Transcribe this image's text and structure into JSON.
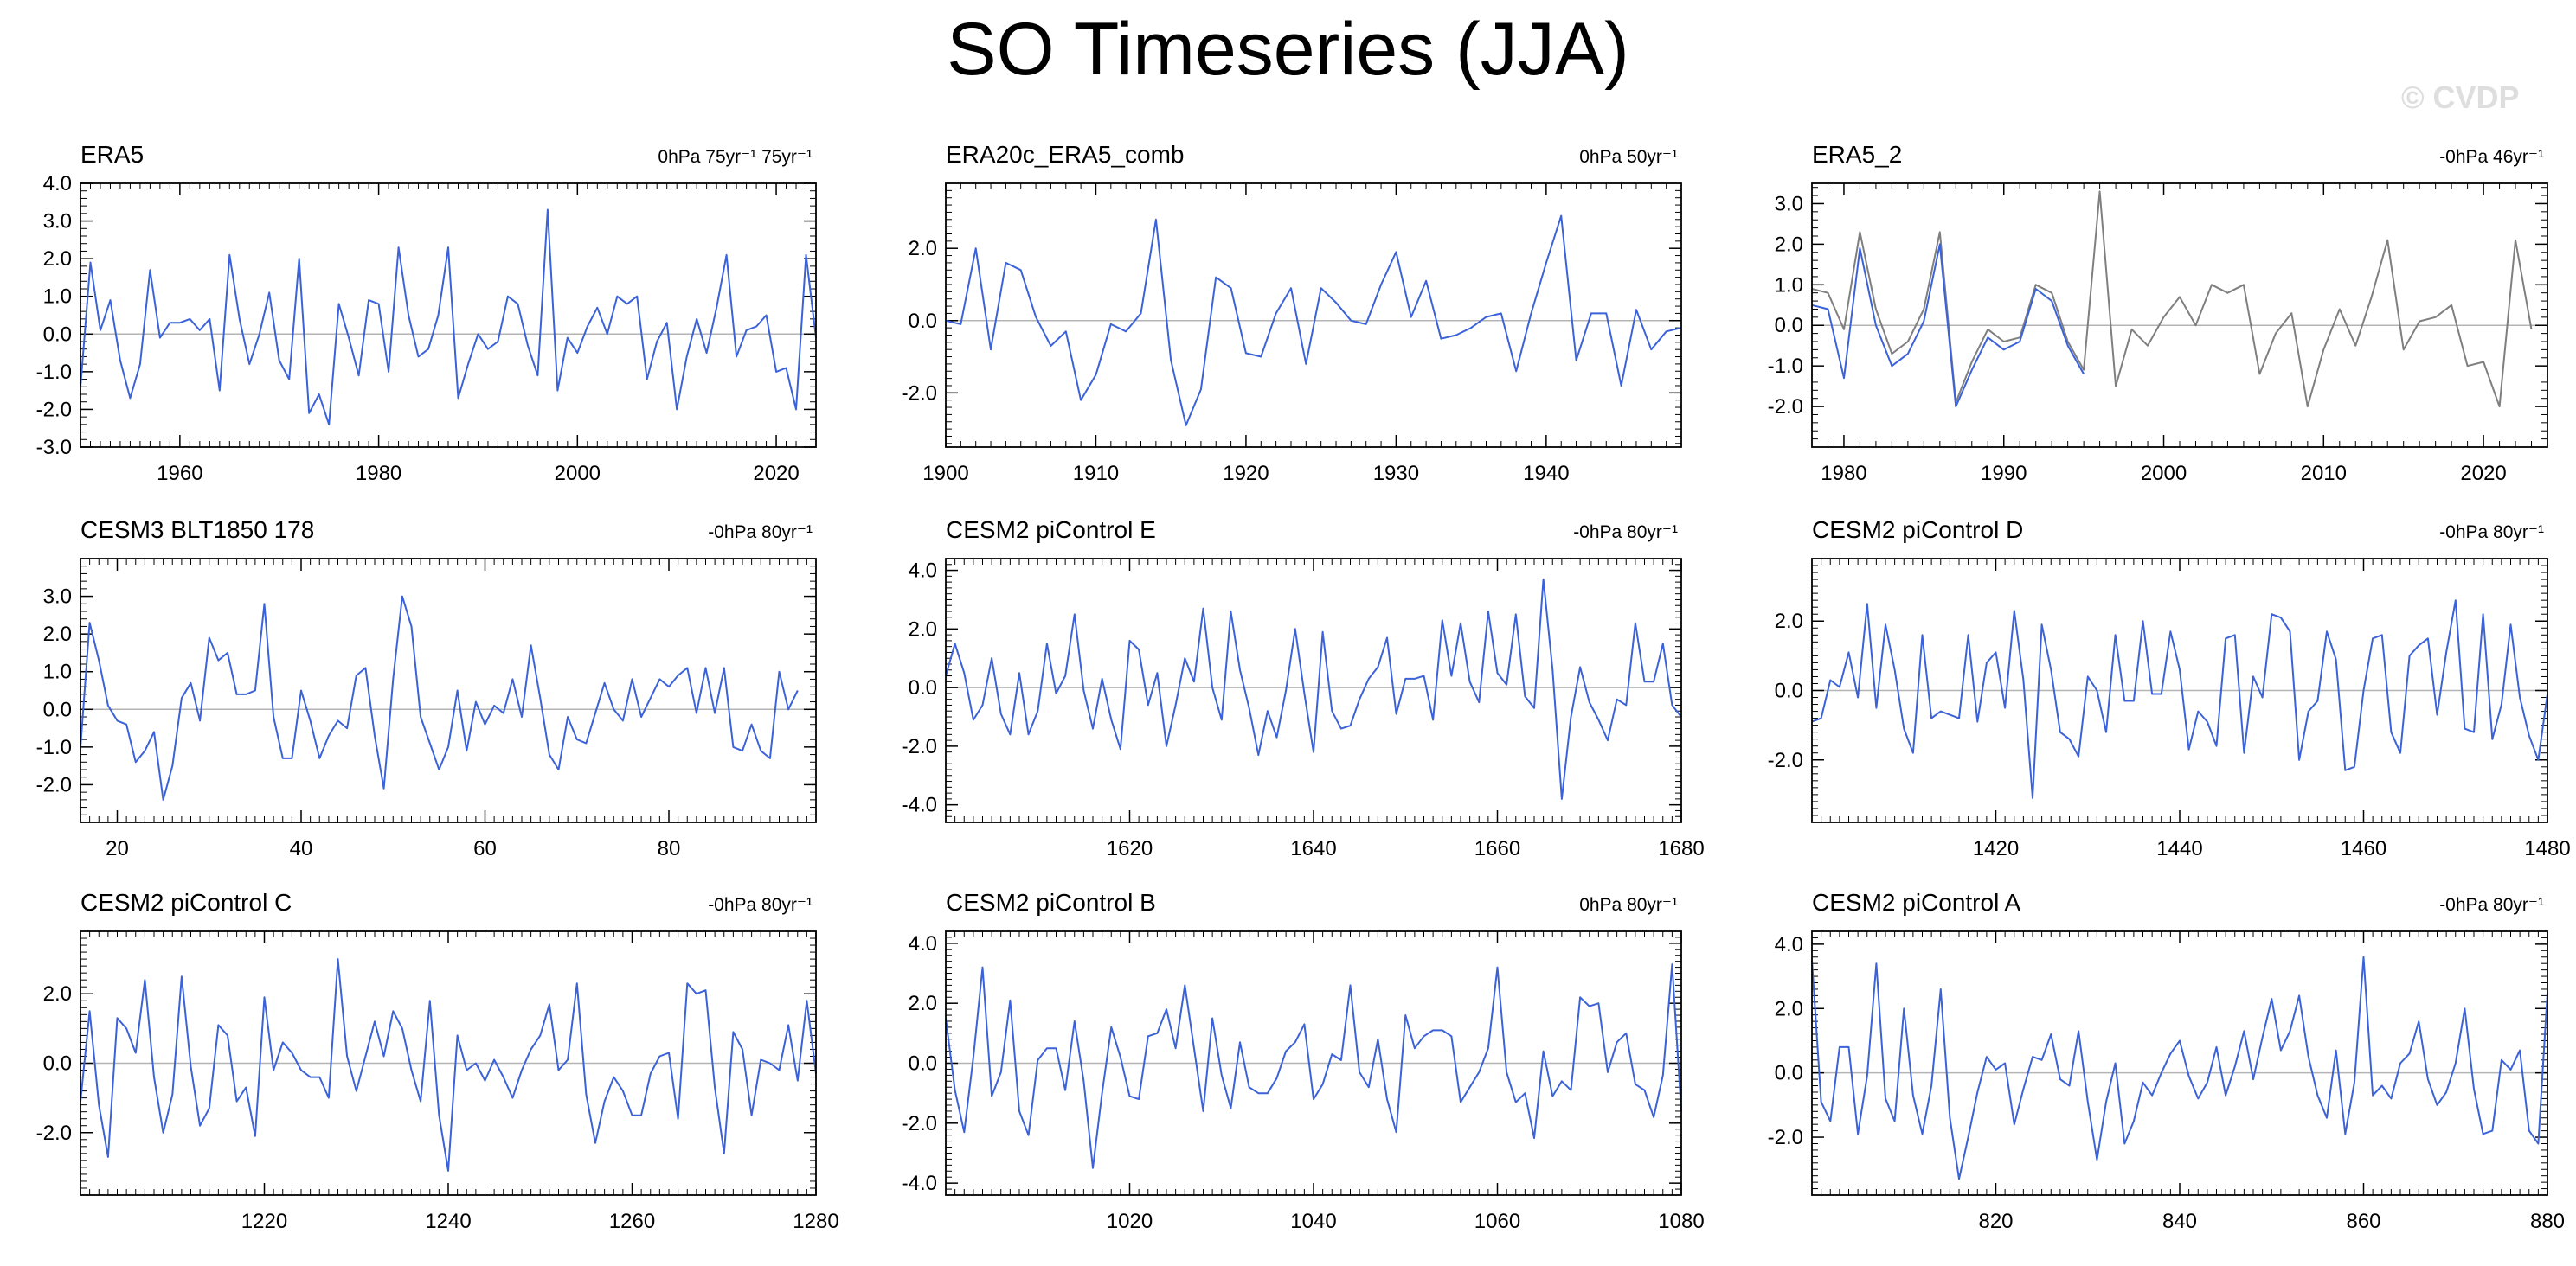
{
  "page": {
    "title": "SO Timeseries (JJA)",
    "watermark": "© CVDP",
    "colors": {
      "series": "#3b62d8",
      "obs_series": "#7f7f7f",
      "zero_line": "#b4b4b4",
      "axis": "#000000"
    }
  },
  "chart_data": [
    {
      "type": "line",
      "title": "ERA5",
      "right_label": "0hPa 75yr⁻¹ 75yr⁻¹",
      "xlim": [
        1950,
        2024
      ],
      "ylim": [
        -3,
        4
      ],
      "xticks": [
        1960,
        1980,
        2000,
        2020
      ],
      "yticks": [
        -3,
        -2,
        -1,
        0,
        1,
        2,
        3,
        4
      ],
      "ytick_labels": [
        "-3.0",
        "-2.0",
        "-1.0",
        "0.0",
        "1.0",
        "2.0",
        "3.0",
        "4.0"
      ],
      "grid": false,
      "series": [
        {
          "color": "#3b62d8",
          "x_start": 1950,
          "x_step": 1,
          "values": [
            -1.4,
            1.9,
            0.1,
            0.9,
            -0.7,
            -1.7,
            -0.8,
            1.7,
            -0.1,
            0.3,
            0.3,
            0.4,
            0.1,
            0.4,
            -1.5,
            2.1,
            0.4,
            -0.8,
            0.0,
            1.1,
            -0.7,
            -1.2,
            2.0,
            -2.1,
            -1.6,
            -2.4,
            0.8,
            -0.1,
            -1.1,
            0.9,
            0.8,
            -1.0,
            2.3,
            0.5,
            -0.6,
            -0.4,
            0.5,
            2.3,
            -1.7,
            -0.8,
            0.0,
            -0.4,
            -0.2,
            1.0,
            0.8,
            -0.3,
            -1.1,
            3.3,
            -1.5,
            -0.1,
            -0.5,
            0.2,
            0.7,
            0.0,
            1.0,
            0.8,
            1.0,
            -1.2,
            -0.2,
            0.3,
            -2.0,
            -0.6,
            0.4,
            -0.5,
            0.7,
            2.1,
            -0.6,
            0.1,
            0.2,
            0.5,
            -1.0,
            -0.9,
            -2.0,
            2.1,
            -0.1
          ]
        }
      ]
    },
    {
      "type": "line",
      "title": "ERA20c_ERA5_comb",
      "right_label": "0hPa 50yr⁻¹",
      "xlim": [
        1900,
        1949
      ],
      "ylim": [
        -3.5,
        3.8
      ],
      "xticks": [
        1900,
        1910,
        1920,
        1930,
        1940
      ],
      "yticks": [
        -2,
        0,
        2
      ],
      "ytick_labels": [
        "-2.0",
        "0.0",
        "2.0"
      ],
      "grid": false,
      "series": [
        {
          "color": "#3b62d8",
          "x_start": 1900,
          "x_step": 1,
          "values": [
            0.0,
            -0.1,
            2.0,
            -0.8,
            1.6,
            1.4,
            0.1,
            -0.7,
            -0.3,
            -2.2,
            -1.5,
            -0.1,
            -0.3,
            0.2,
            2.8,
            -1.1,
            -2.9,
            -1.9,
            1.2,
            0.9,
            -0.9,
            -1.0,
            0.2,
            0.9,
            -1.2,
            0.9,
            0.5,
            0.0,
            -0.1,
            1.0,
            1.9,
            0.1,
            1.1,
            -0.5,
            -0.4,
            -0.2,
            0.1,
            0.2,
            -1.4,
            0.2,
            1.6,
            2.9,
            -1.1,
            0.2,
            0.2,
            -1.8,
            0.3,
            -0.8,
            -0.3,
            -0.2
          ]
        }
      ]
    },
    {
      "type": "line",
      "title": "ERA5_2",
      "right_label": "-0hPa 46yr⁻¹",
      "xlim": [
        1978,
        2024
      ],
      "ylim": [
        -3,
        3.5
      ],
      "xticks": [
        1980,
        1990,
        2000,
        2010,
        2020
      ],
      "yticks": [
        -2,
        -1,
        0,
        1,
        2,
        3
      ],
      "ytick_labels": [
        "-2.0",
        "-1.0",
        "0.0",
        "1.0",
        "2.0",
        "3.0"
      ],
      "grid": false,
      "series": [
        {
          "color": "#7f7f7f",
          "x_start": 1978,
          "x_step": 1,
          "values": [
            0.9,
            0.8,
            -0.1,
            2.3,
            0.4,
            -0.7,
            -0.4,
            0.4,
            2.3,
            -1.9,
            -0.9,
            -0.1,
            -0.4,
            -0.3,
            1.0,
            0.8,
            -0.4,
            -1.1,
            3.3,
            -1.5,
            -0.1,
            -0.5,
            0.2,
            0.7,
            0.0,
            1.0,
            0.8,
            1.0,
            -1.2,
            -0.2,
            0.3,
            -2.0,
            -0.6,
            0.4,
            -0.5,
            0.7,
            2.1,
            -0.6,
            0.1,
            0.2,
            0.5,
            -1.0,
            -0.9,
            -2.0,
            2.1,
            -0.1
          ]
        },
        {
          "color": "#3b62d8",
          "x_start": 1978,
          "x_step": 1,
          "values": [
            0.5,
            0.4,
            -1.3,
            1.9,
            0.0,
            -1.0,
            -0.7,
            0.1,
            2.0,
            -2.0,
            -1.1,
            -0.3,
            -0.6,
            -0.4,
            0.9,
            0.6,
            -0.5,
            -1.2
          ]
        }
      ]
    },
    {
      "type": "line",
      "title": "CESM3 BLT1850 178",
      "right_label": "-0hPa 80yr⁻¹",
      "xlim": [
        16,
        96
      ],
      "ylim": [
        -3,
        4
      ],
      "xticks": [
        20,
        40,
        60,
        80
      ],
      "yticks": [
        -2,
        -1,
        0,
        1,
        2,
        3
      ],
      "ytick_labels": [
        "-2.0",
        "-1.0",
        "0.0",
        "1.0",
        "2.0",
        "3.0"
      ],
      "grid": false,
      "series": [
        {
          "color": "#3b62d8",
          "x_start": 16,
          "x_step": 1,
          "values": [
            -1.0,
            2.3,
            1.3,
            0.1,
            -0.3,
            -0.4,
            -1.4,
            -1.1,
            -0.6,
            -2.4,
            -1.5,
            0.3,
            0.7,
            -0.3,
            1.9,
            1.3,
            1.5,
            0.4,
            0.4,
            0.5,
            2.8,
            -0.2,
            -1.3,
            -1.3,
            0.5,
            -0.3,
            -1.3,
            -0.7,
            -0.3,
            -0.5,
            0.9,
            1.1,
            -0.7,
            -2.1,
            0.8,
            3.0,
            2.2,
            -0.2,
            -0.9,
            -1.6,
            -1.0,
            0.5,
            -1.1,
            0.2,
            -0.4,
            0.1,
            -0.1,
            0.8,
            -0.2,
            1.7,
            0.3,
            -1.2,
            -1.6,
            -0.2,
            -0.8,
            -0.9,
            -0.1,
            0.7,
            0.0,
            -0.3,
            0.8,
            -0.2,
            0.3,
            0.8,
            0.6,
            0.9,
            1.1,
            -0.1,
            1.1,
            -0.1,
            1.1,
            -1.0,
            -1.1,
            -0.4,
            -1.1,
            -1.3,
            1.0,
            0.0,
            0.5
          ]
        }
      ]
    },
    {
      "type": "line",
      "title": "CESM2 piControl E",
      "right_label": "-0hPa 80yr⁻¹",
      "xlim": [
        1600,
        1680
      ],
      "ylim": [
        -4.6,
        4.4
      ],
      "xticks": [
        1620,
        1640,
        1660,
        1680
      ],
      "yticks": [
        -4,
        -2,
        0,
        2,
        4
      ],
      "ytick_labels": [
        "-4.0",
        "-2.0",
        "0.0",
        "2.0",
        "4.0"
      ],
      "grid": false,
      "series": [
        {
          "color": "#3b62d8",
          "x_start": 1600,
          "x_step": 1,
          "values": [
            0.4,
            1.5,
            0.5,
            -1.1,
            -0.6,
            1.0,
            -0.9,
            -1.6,
            0.5,
            -1.6,
            -0.8,
            1.5,
            -0.2,
            0.4,
            2.5,
            -0.1,
            -1.4,
            0.3,
            -1.1,
            -2.1,
            1.6,
            1.3,
            -0.6,
            0.5,
            -2.0,
            -0.6,
            1.0,
            0.2,
            2.7,
            0.0,
            -1.1,
            2.6,
            0.6,
            -0.7,
            -2.3,
            -0.8,
            -1.7,
            -0.1,
            2.0,
            -0.2,
            -2.2,
            1.9,
            -0.8,
            -1.4,
            -1.3,
            -0.4,
            0.3,
            0.7,
            1.7,
            -0.9,
            0.3,
            0.3,
            0.4,
            -1.1,
            2.3,
            0.4,
            2.2,
            0.2,
            -0.5,
            2.6,
            0.5,
            0.1,
            2.5,
            -0.3,
            -0.7,
            3.7,
            0.6,
            -3.8,
            -1.0,
            0.7,
            -0.5,
            -1.1,
            -1.8,
            -0.4,
            -0.6,
            2.2,
            0.2,
            0.2,
            1.5,
            -0.6,
            -1.0
          ]
        }
      ]
    },
    {
      "type": "line",
      "title": "CESM2 piControl D",
      "right_label": "-0hPa 80yr⁻¹",
      "xlim": [
        1400,
        1480
      ],
      "ylim": [
        -3.8,
        3.8
      ],
      "xticks": [
        1420,
        1440,
        1460,
        1480
      ],
      "yticks": [
        -2,
        0,
        2
      ],
      "ytick_labels": [
        "-2.0",
        "0.0",
        "2.0"
      ],
      "grid": false,
      "series": [
        {
          "color": "#3b62d8",
          "x_start": 1400,
          "x_step": 1,
          "values": [
            -0.9,
            -0.8,
            0.3,
            0.1,
            1.1,
            -0.2,
            2.5,
            -0.5,
            1.9,
            0.6,
            -1.1,
            -1.8,
            1.6,
            -0.8,
            -0.6,
            -0.7,
            -0.8,
            1.6,
            -0.9,
            0.8,
            1.1,
            -0.5,
            2.3,
            0.3,
            -3.1,
            1.9,
            0.6,
            -1.2,
            -1.4,
            -1.9,
            0.4,
            0.0,
            -1.2,
            1.6,
            -0.3,
            -0.3,
            2.0,
            -0.1,
            -0.1,
            1.7,
            0.6,
            -1.7,
            -0.6,
            -0.9,
            -1.6,
            1.5,
            1.6,
            -1.8,
            0.4,
            -0.2,
            2.2,
            2.1,
            1.7,
            -2.0,
            -0.6,
            -0.3,
            1.7,
            0.9,
            -2.3,
            -2.2,
            0.0,
            1.5,
            1.6,
            -1.2,
            -1.8,
            1.0,
            1.3,
            1.5,
            -0.7,
            1.1,
            2.6,
            -1.1,
            -1.2,
            2.2,
            -1.4,
            -0.4,
            1.9,
            -0.2,
            -1.3,
            -2.0,
            -0.1
          ]
        }
      ]
    },
    {
      "type": "line",
      "title": "CESM2 piControl C",
      "right_label": "-0hPa 80yr⁻¹",
      "xlim": [
        1200,
        1280
      ],
      "ylim": [
        -3.8,
        3.8
      ],
      "xticks": [
        1220,
        1240,
        1260,
        1280
      ],
      "yticks": [
        -2,
        0,
        2
      ],
      "ytick_labels": [
        "-2.0",
        "0.0",
        "2.0"
      ],
      "grid": false,
      "series": [
        {
          "color": "#3b62d8",
          "x_start": 1200,
          "x_step": 1,
          "values": [
            -1.1,
            1.5,
            -1.2,
            -2.7,
            1.3,
            1.0,
            0.3,
            2.4,
            -0.4,
            -2.0,
            -0.9,
            2.5,
            -0.1,
            -1.8,
            -1.3,
            1.1,
            0.8,
            -1.1,
            -0.7,
            -2.1,
            1.9,
            -0.2,
            0.6,
            0.3,
            -0.2,
            -0.4,
            -0.4,
            -1.0,
            3.0,
            0.2,
            -0.8,
            0.2,
            1.2,
            0.2,
            1.5,
            1.0,
            -0.2,
            -1.1,
            1.8,
            -1.5,
            -3.1,
            0.8,
            -0.2,
            0.0,
            -0.5,
            0.1,
            -0.4,
            -1.0,
            -0.2,
            0.4,
            0.8,
            1.7,
            -0.2,
            0.1,
            2.3,
            -0.9,
            -2.3,
            -1.1,
            -0.4,
            -0.8,
            -1.5,
            -1.5,
            -0.3,
            0.2,
            0.3,
            -1.6,
            2.3,
            2.0,
            2.1,
            -0.7,
            -2.6,
            0.9,
            0.4,
            -1.5,
            0.1,
            0.0,
            -0.2,
            1.1,
            -0.5,
            1.8,
            -0.3
          ]
        }
      ]
    },
    {
      "type": "line",
      "title": "CESM2 piControl B",
      "right_label": "0hPa 80yr⁻¹",
      "xlim": [
        1000,
        1080
      ],
      "ylim": [
        -4.4,
        4.4
      ],
      "xticks": [
        1020,
        1040,
        1060,
        1080
      ],
      "yticks": [
        -4,
        -2,
        0,
        2,
        4
      ],
      "ytick_labels": [
        "-4.0",
        "-2.0",
        "0.0",
        "2.0",
        "4.0"
      ],
      "grid": false,
      "series": [
        {
          "color": "#3b62d8",
          "x_start": 1000,
          "x_step": 1,
          "values": [
            1.5,
            -0.9,
            -2.3,
            0.2,
            3.2,
            -1.1,
            -0.3,
            2.1,
            -1.6,
            -2.4,
            0.1,
            0.5,
            0.5,
            -0.9,
            1.4,
            -0.6,
            -3.5,
            -1.0,
            1.2,
            0.2,
            -1.1,
            -1.2,
            0.9,
            1.0,
            1.8,
            0.5,
            2.6,
            0.5,
            -1.6,
            1.5,
            -0.4,
            -1.5,
            0.7,
            -0.8,
            -1.0,
            -1.0,
            -0.5,
            0.4,
            0.7,
            1.3,
            -1.2,
            -0.7,
            0.3,
            0.1,
            2.6,
            -0.3,
            -0.8,
            0.8,
            -1.2,
            -2.3,
            1.6,
            0.5,
            0.9,
            1.1,
            1.1,
            0.9,
            -1.3,
            -0.8,
            -0.3,
            0.5,
            3.2,
            -0.3,
            -1.3,
            -1.0,
            -2.5,
            0.4,
            -1.1,
            -0.6,
            -0.9,
            2.2,
            1.9,
            2.0,
            -0.3,
            0.7,
            1.0,
            -0.7,
            -0.9,
            -1.8,
            -0.4,
            3.3,
            -1.6
          ]
        }
      ]
    },
    {
      "type": "line",
      "title": "CESM2 piControl A",
      "right_label": "-0hPa 80yr⁻¹",
      "xlim": [
        800,
        880
      ],
      "ylim": [
        -3.8,
        4.4
      ],
      "xticks": [
        820,
        840,
        860,
        880
      ],
      "yticks": [
        -2,
        0,
        2,
        4
      ],
      "ytick_labels": [
        "-2.0",
        "0.0",
        "2.0",
        "4.0"
      ],
      "grid": false,
      "series": [
        {
          "color": "#3b62d8",
          "x_start": 800,
          "x_step": 1,
          "values": [
            3.5,
            -0.9,
            -1.5,
            0.8,
            0.8,
            -1.9,
            -0.1,
            3.4,
            -0.8,
            -1.5,
            2.0,
            -0.7,
            -1.9,
            -0.4,
            2.6,
            -1.4,
            -3.3,
            -2.0,
            -0.6,
            0.5,
            0.1,
            0.3,
            -1.6,
            -0.5,
            0.5,
            0.4,
            1.2,
            -0.2,
            -0.4,
            1.3,
            -0.9,
            -2.7,
            -0.9,
            0.3,
            -2.2,
            -1.5,
            -0.3,
            -0.7,
            0.0,
            0.6,
            1.0,
            -0.1,
            -0.8,
            -0.3,
            0.8,
            -0.7,
            0.2,
            1.3,
            -0.2,
            1.1,
            2.3,
            0.7,
            1.3,
            2.4,
            0.5,
            -0.7,
            -1.4,
            0.7,
            -1.9,
            -0.3,
            3.6,
            -0.7,
            -0.4,
            -0.8,
            0.3,
            0.6,
            1.6,
            -0.2,
            -1.0,
            -0.6,
            0.3,
            2.0,
            -0.5,
            -1.9,
            -1.8,
            0.4,
            0.1,
            0.7,
            -1.8,
            -2.2,
            2.5
          ]
        }
      ]
    }
  ]
}
